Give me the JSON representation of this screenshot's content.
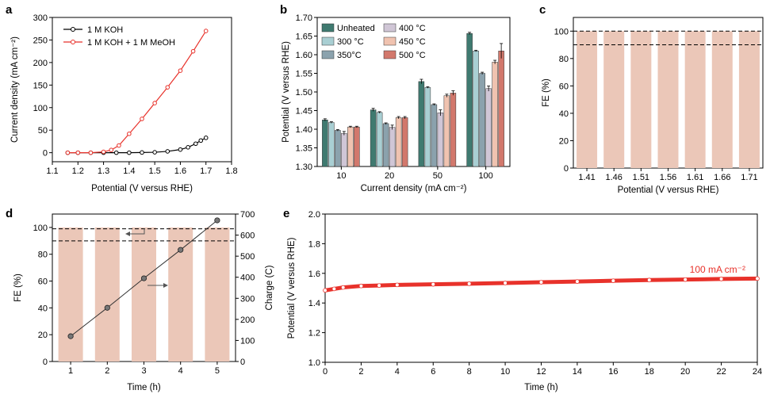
{
  "panel_labels": [
    "a",
    "b",
    "c",
    "d",
    "e"
  ],
  "chart_data": [
    {
      "panel": "a",
      "type": "line",
      "xlabel": "Potential (V versus RHE)",
      "ylabel": "Current density (mA cm⁻²)",
      "xlim": [
        1.1,
        1.8
      ],
      "ylim": [
        -20,
        300
      ],
      "xticks": [
        1.1,
        1.2,
        1.3,
        1.4,
        1.5,
        1.6,
        1.7,
        1.8
      ],
      "yticks": [
        0,
        50,
        100,
        150,
        200,
        250,
        300
      ],
      "legend_position": "top-left",
      "series": [
        {
          "name": "1 M KOH",
          "color": "#000000",
          "x": [
            1.16,
            1.2,
            1.25,
            1.3,
            1.35,
            1.4,
            1.45,
            1.5,
            1.55,
            1.6,
            1.63,
            1.66,
            1.68,
            1.7
          ],
          "y": [
            0,
            0,
            0,
            0,
            0,
            0,
            0.5,
            1,
            3,
            7,
            12,
            20,
            27,
            33
          ]
        },
        {
          "name": "1 M KOH + 1 M MeOH",
          "color": "#e8322b",
          "x": [
            1.16,
            1.2,
            1.25,
            1.3,
            1.33,
            1.36,
            1.4,
            1.45,
            1.5,
            1.55,
            1.6,
            1.65,
            1.7
          ],
          "y": [
            0,
            0,
            0,
            2,
            6,
            16,
            42,
            75,
            110,
            145,
            182,
            225,
            270
          ]
        }
      ]
    },
    {
      "panel": "b",
      "type": "bar",
      "xlabel": "Current density (mA cm⁻²)",
      "ylabel": "Potential (V versus RHE)",
      "ylim": [
        1.3,
        1.7
      ],
      "yticks": [
        1.3,
        1.35,
        1.4,
        1.45,
        1.5,
        1.55,
        1.6,
        1.65,
        1.7
      ],
      "categories": [
        "10",
        "20",
        "50",
        "100"
      ],
      "legend_position": "top-left",
      "series": [
        {
          "name": "Unheated",
          "color": "#3f7a70",
          "values": [
            1.425,
            1.452,
            1.528,
            1.657
          ],
          "errors": [
            0.003,
            0.004,
            0.006,
            0.003
          ]
        },
        {
          "name": "300 °C",
          "color": "#a9cfd3",
          "values": [
            1.418,
            1.445,
            1.512,
            1.61
          ],
          "errors": [
            0.002,
            0.002,
            0.002,
            0.002
          ]
        },
        {
          "name": "350°C",
          "color": "#8ba2ad",
          "values": [
            1.397,
            1.415,
            1.466,
            1.55
          ],
          "errors": [
            0.002,
            0.002,
            0.002,
            0.003
          ]
        },
        {
          "name": "400 °C",
          "color": "#d0c6d6",
          "values": [
            1.389,
            1.405,
            1.444,
            1.509
          ],
          "errors": [
            0.005,
            0.006,
            0.008,
            0.007
          ]
        },
        {
          "name": "450 °C",
          "color": "#f0c3b0",
          "values": [
            1.406,
            1.431,
            1.49,
            1.58
          ],
          "errors": [
            0.002,
            0.003,
            0.004,
            0.005
          ]
        },
        {
          "name": "500 °C",
          "color": "#d2786c",
          "values": [
            1.406,
            1.431,
            1.497,
            1.61
          ],
          "errors": [
            0.002,
            0.003,
            0.006,
            0.02
          ]
        }
      ]
    },
    {
      "panel": "c",
      "type": "bar",
      "xlabel": "Potential (V versus RHE)",
      "ylabel": "FE (%)",
      "ylim": [
        0,
        110
      ],
      "yticks": [
        0,
        20,
        40,
        60,
        80,
        100
      ],
      "categories": [
        "1.41",
        "1.46",
        "1.51",
        "1.56",
        "1.61",
        "1.66",
        "1.71"
      ],
      "values": [
        100,
        100,
        100,
        100,
        100,
        100,
        100
      ],
      "bar_color": "#ebc7b8",
      "reference_lines": [
        100,
        90
      ]
    },
    {
      "panel": "d",
      "type": "bar",
      "xlabel": "Time (h)",
      "ylabel": "FE (%)",
      "y2label": "Charge (C)",
      "ylim": [
        0,
        110
      ],
      "yticks": [
        0,
        20,
        40,
        60,
        80,
        100
      ],
      "y2lim": [
        0,
        700
      ],
      "y2ticks": [
        0,
        100,
        200,
        300,
        400,
        500,
        600,
        700
      ],
      "categories": [
        "1",
        "2",
        "3",
        "4",
        "5"
      ],
      "values": [
        100,
        100,
        100,
        100,
        100
      ],
      "bar_color": "#ebc7b8",
      "reference_lines": [
        99,
        90
      ],
      "charge": {
        "x": [
          1,
          2,
          3,
          4,
          5
        ],
        "y": [
          120,
          255,
          395,
          530,
          670
        ],
        "color": "#555555"
      }
    },
    {
      "panel": "e",
      "type": "line",
      "xlabel": "Time (h)",
      "ylabel": "Potential (V versus RHE)",
      "xlim": [
        0,
        24
      ],
      "ylim": [
        1.0,
        2.0
      ],
      "xticks": [
        0,
        2,
        4,
        6,
        8,
        10,
        12,
        14,
        16,
        18,
        20,
        22,
        24
      ],
      "yticks": [
        1.0,
        1.2,
        1.4,
        1.6,
        1.8,
        2.0
      ],
      "annotation": "100 mA cm⁻²",
      "series": [
        {
          "color": "#e8322b",
          "x": [
            0,
            0.5,
            1,
            2,
            3,
            4,
            6,
            8,
            10,
            12,
            14,
            16,
            18,
            20,
            22,
            24
          ],
          "y": [
            1.485,
            1.495,
            1.505,
            1.515,
            1.518,
            1.522,
            1.526,
            1.53,
            1.535,
            1.54,
            1.545,
            1.55,
            1.555,
            1.558,
            1.562,
            1.565
          ]
        }
      ]
    }
  ]
}
